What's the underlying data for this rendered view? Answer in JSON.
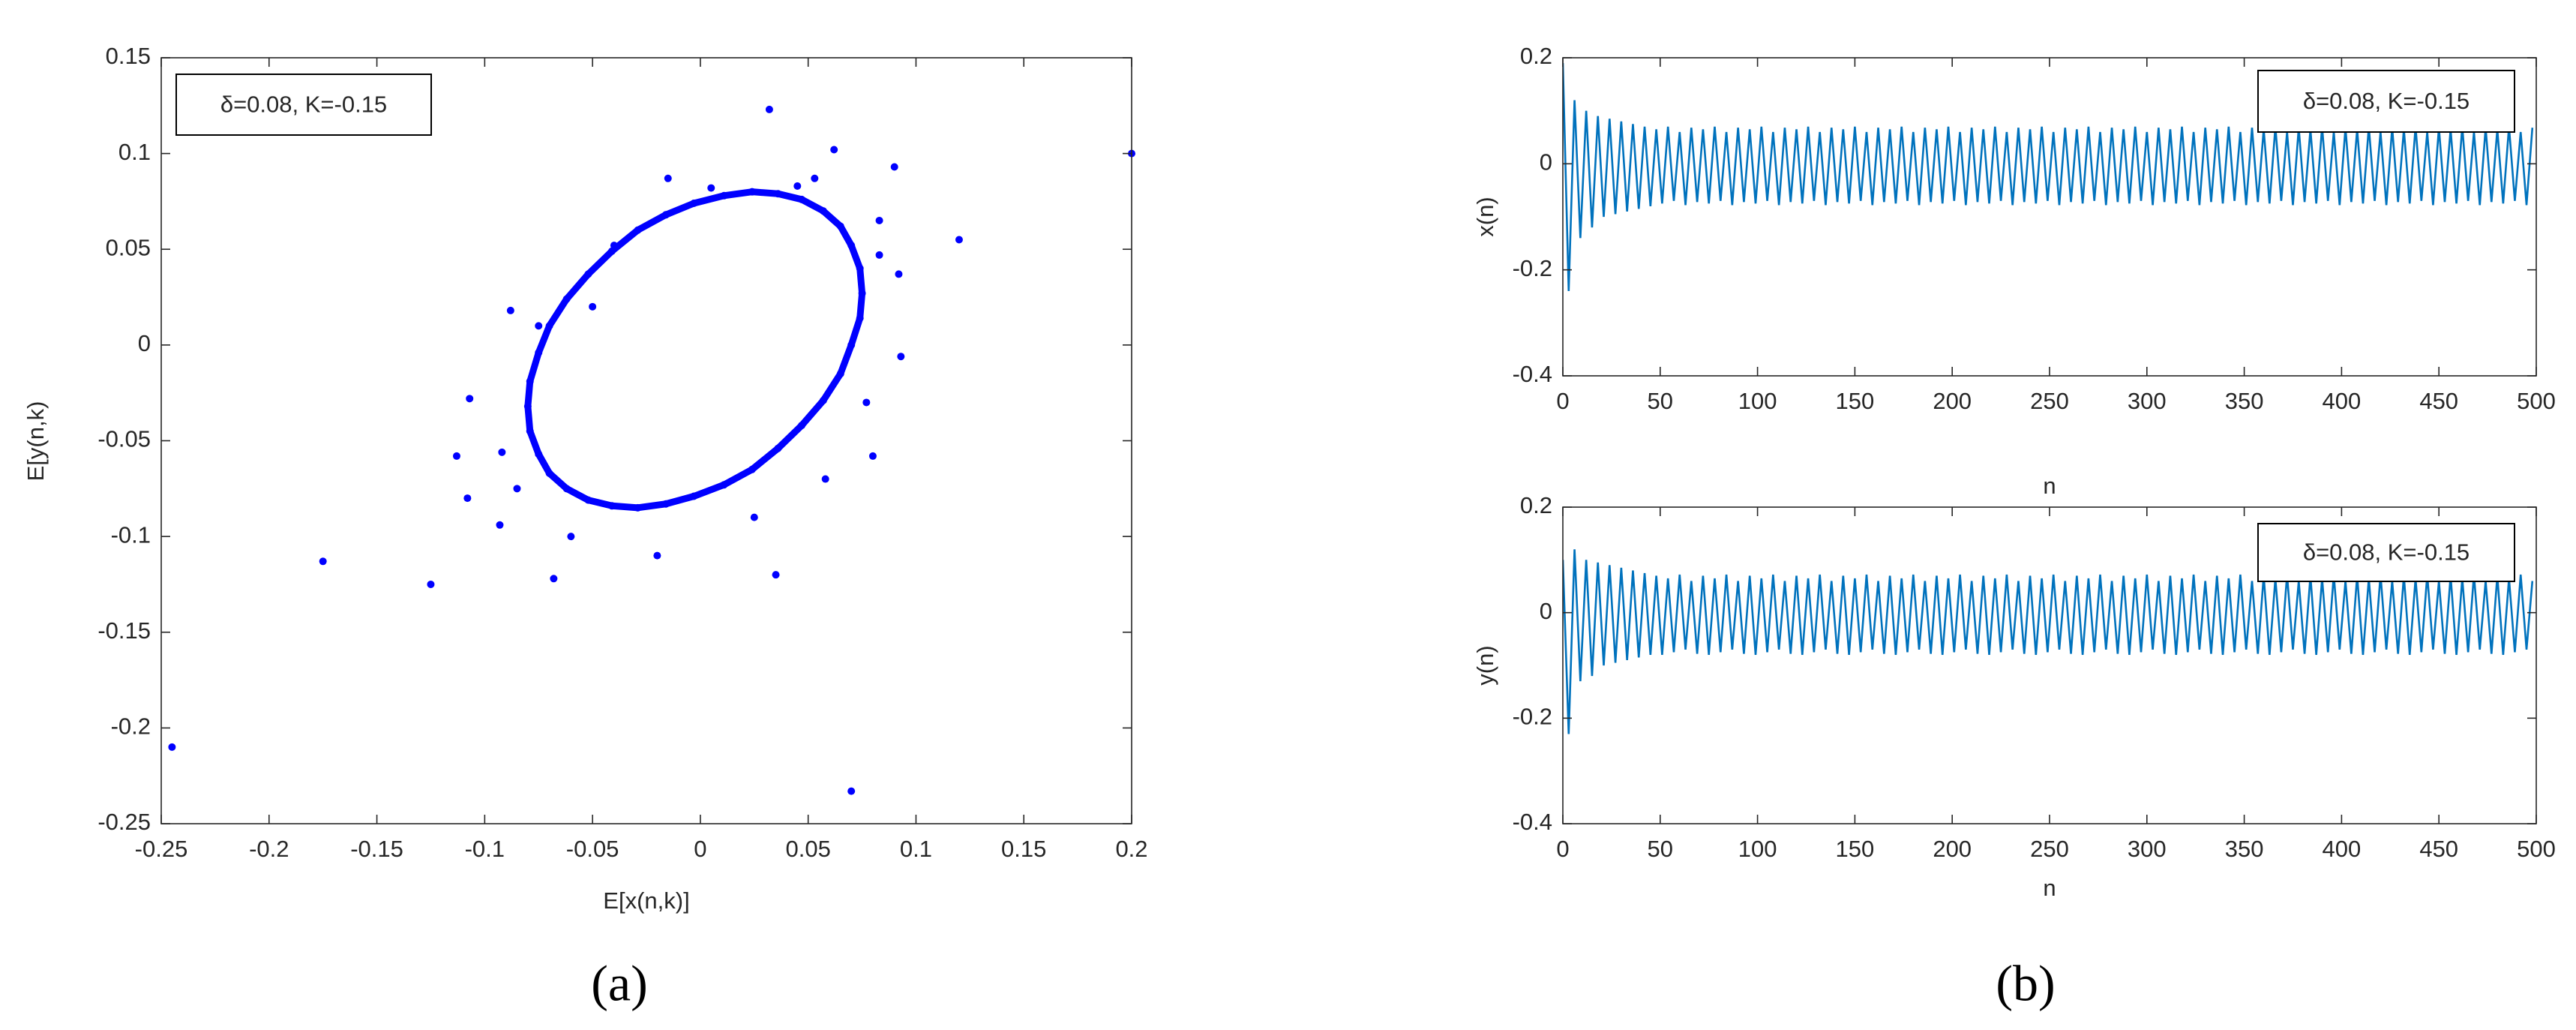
{
  "panel_labels": [
    "(a)",
    "(b)"
  ],
  "chart_data": [
    {
      "type": "scatter",
      "xlabel": "E[x(n,k)]",
      "ylabel": "E[y(n,k)",
      "annotation": "δ=0.08, K=-0.15",
      "xlim": [
        -0.25,
        0.2
      ],
      "ylim": [
        -0.25,
        0.15
      ],
      "xticks": [
        -0.25,
        -0.2,
        -0.15,
        -0.1,
        -0.05,
        0,
        0.05,
        0.1,
        0.15,
        0.2
      ],
      "yticks": [
        -0.25,
        -0.2,
        -0.15,
        -0.1,
        -0.05,
        0,
        0.05,
        0.1,
        0.15
      ],
      "series": [
        {
          "color": "#0000ff",
          "connected": true,
          "x": [
            0.075,
            0.074,
            0.07,
            0.065,
            0.057,
            0.047,
            0.036,
            0.024,
            0.011,
            -0.003,
            -0.016,
            -0.029,
            -0.041,
            -0.052,
            -0.062,
            -0.07,
            -0.075,
            -0.079,
            -0.08,
            -0.079,
            -0.075,
            -0.07,
            -0.062,
            -0.052,
            -0.041,
            -0.029,
            -0.016,
            -0.003,
            0.011,
            0.024,
            0.036,
            0.047,
            0.057,
            0.065,
            0.07,
            0.074
          ],
          "values": [
            0.027,
            0.04,
            0.052,
            0.062,
            0.07,
            0.076,
            0.079,
            0.08,
            0.078,
            0.074,
            0.068,
            0.06,
            0.049,
            0.037,
            0.024,
            0.01,
            -0.004,
            -0.019,
            -0.032,
            -0.045,
            -0.057,
            -0.067,
            -0.075,
            -0.081,
            -0.084,
            -0.085,
            -0.083,
            -0.079,
            -0.073,
            -0.065,
            -0.054,
            -0.042,
            -0.029,
            -0.015,
            0,
            0.014
          ]
        },
        {
          "color": "#0000ff",
          "connected": false,
          "x": [
            0.2,
            -0.245,
            -0.175,
            -0.125,
            0.07,
            0.12,
            0.032,
            0.09,
            0.062,
            0.035,
            -0.015,
            -0.02,
            -0.068,
            -0.088,
            -0.107,
            -0.113,
            -0.108,
            -0.093,
            -0.092,
            0.093,
            0.092,
            0.083,
            0.08,
            0.025,
            -0.04,
            -0.05,
            -0.06,
            0.045,
            0.053,
            0.077,
            0.005,
            -0.085,
            0.083,
            -0.075,
            0.058
          ],
          "values": [
            0.1,
            -0.21,
            -0.113,
            -0.125,
            -0.233,
            0.055,
            0.123,
            0.093,
            0.102,
            -0.12,
            0.087,
            -0.11,
            -0.122,
            0.018,
            -0.028,
            -0.058,
            -0.08,
            -0.094,
            -0.056,
            -0.006,
            0.037,
            0.047,
            -0.058,
            -0.09,
            0.052,
            0.02,
            -0.1,
            0.083,
            0.087,
            -0.03,
            0.082,
            -0.075,
            0.065,
            0.01,
            -0.07
          ]
        }
      ]
    },
    {
      "type": "line",
      "xlabel": "n",
      "ylabel": "x(n)",
      "annotation": "δ=0.08, K=-0.15",
      "xlim": [
        0,
        500
      ],
      "ylim": [
        -0.4,
        0.2
      ],
      "xticks": [
        0,
        50,
        100,
        150,
        200,
        250,
        300,
        350,
        400,
        450,
        500
      ],
      "yticks": [
        -0.4,
        -0.2,
        0,
        0.2
      ],
      "x": [
        0,
        3,
        6,
        9,
        12,
        15,
        18,
        21,
        24,
        27,
        30,
        33,
        36,
        39,
        42,
        45,
        48,
        51,
        54,
        57,
        60,
        63,
        66,
        69,
        72,
        75,
        78,
        81,
        84,
        87,
        90,
        93,
        96,
        99,
        102,
        105,
        108,
        111,
        114,
        117,
        120,
        123,
        126,
        129,
        132,
        135,
        138,
        141,
        144,
        147,
        150,
        153,
        156,
        159,
        162,
        165,
        168,
        171,
        174,
        177,
        180,
        183,
        186,
        189,
        192,
        195,
        198,
        201,
        204,
        207,
        210,
        213,
        216,
        219,
        222,
        225,
        228,
        231,
        234,
        237,
        240,
        243,
        246,
        249,
        252,
        255,
        258,
        261,
        264,
        267,
        270,
        273,
        276,
        279,
        282,
        285,
        288,
        291,
        294,
        297,
        300,
        303,
        306,
        309,
        312,
        315,
        318,
        321,
        324,
        327,
        330,
        333,
        336,
        339,
        342,
        345,
        348,
        351,
        354,
        357,
        360,
        363,
        366,
        369,
        372,
        375,
        378,
        381,
        384,
        387,
        390,
        393,
        396,
        399,
        402,
        405,
        408,
        411,
        414,
        417,
        420,
        423,
        426,
        429,
        432,
        435,
        438,
        441,
        444,
        447,
        450,
        453,
        456,
        459,
        462,
        465,
        468,
        471,
        474,
        477,
        480,
        483,
        486,
        489,
        492,
        495,
        498
      ],
      "series": [
        {
          "color": "#0072bd",
          "values": [
            0.19,
            -0.24,
            0.12,
            -0.14,
            0.1,
            -0.12,
            0.09,
            -0.1,
            0.085,
            -0.095,
            0.08,
            -0.09,
            0.075,
            -0.085,
            0.07,
            -0.08,
            0.065,
            -0.075,
            0.07,
            -0.07,
            0.06,
            -0.078,
            0.068,
            -0.072,
            0.065,
            -0.075,
            0.07,
            -0.07,
            0.06,
            -0.078,
            0.068,
            -0.072,
            0.065,
            -0.075,
            0.07,
            -0.07,
            0.06,
            -0.078,
            0.068,
            -0.072,
            0.065,
            -0.075,
            0.07,
            -0.07,
            0.06,
            -0.078,
            0.068,
            -0.072,
            0.065,
            -0.075,
            0.07,
            -0.07,
            0.06,
            -0.078,
            0.068,
            -0.072,
            0.065,
            -0.075,
            0.07,
            -0.07,
            0.06,
            -0.078,
            0.068,
            -0.072,
            0.065,
            -0.075,
            0.07,
            -0.07,
            0.06,
            -0.078,
            0.068,
            -0.072,
            0.065,
            -0.075,
            0.07,
            -0.07,
            0.06,
            -0.078,
            0.068,
            -0.072,
            0.065,
            -0.075,
            0.07,
            -0.07,
            0.06,
            -0.078,
            0.068,
            -0.072,
            0.065,
            -0.075,
            0.07,
            -0.07,
            0.06,
            -0.078,
            0.068,
            -0.072,
            0.065,
            -0.075,
            0.07,
            -0.07,
            0.06,
            -0.078,
            0.068,
            -0.072,
            0.065,
            -0.075,
            0.07,
            -0.07,
            0.06,
            -0.078,
            0.068,
            -0.072,
            0.065,
            -0.075,
            0.07,
            -0.07,
            0.06,
            -0.078,
            0.068,
            -0.072,
            0.065,
            -0.075,
            0.07,
            -0.07,
            0.06,
            -0.078,
            0.068,
            -0.072,
            0.065,
            -0.075,
            0.07,
            -0.07,
            0.06,
            -0.078,
            0.068,
            -0.072,
            0.065,
            -0.075,
            0.07,
            -0.07,
            0.06,
            -0.078,
            0.068,
            -0.072,
            0.065,
            -0.075,
            0.07,
            -0.07,
            0.06,
            -0.078,
            0.068,
            -0.072,
            0.065,
            -0.075,
            0.07,
            -0.07,
            0.06,
            -0.078,
            0.068,
            -0.072,
            0.065,
            -0.075,
            0.07,
            -0.07,
            0.06,
            -0.078,
            0.068
          ]
        }
      ]
    },
    {
      "type": "line",
      "xlabel": "n",
      "ylabel": "y(n)",
      "annotation": "δ=0.08, K=-0.15",
      "xlim": [
        0,
        500
      ],
      "ylim": [
        -0.4,
        0.2
      ],
      "xticks": [
        0,
        50,
        100,
        150,
        200,
        250,
        300,
        350,
        400,
        450,
        500
      ],
      "yticks": [
        -0.4,
        -0.2,
        0,
        0.2
      ],
      "x": [
        0,
        3,
        6,
        9,
        12,
        15,
        18,
        21,
        24,
        27,
        30,
        33,
        36,
        39,
        42,
        45,
        48,
        51,
        54,
        57,
        60,
        63,
        66,
        69,
        72,
        75,
        78,
        81,
        84,
        87,
        90,
        93,
        96,
        99,
        102,
        105,
        108,
        111,
        114,
        117,
        120,
        123,
        126,
        129,
        132,
        135,
        138,
        141,
        144,
        147,
        150,
        153,
        156,
        159,
        162,
        165,
        168,
        171,
        174,
        177,
        180,
        183,
        186,
        189,
        192,
        195,
        198,
        201,
        204,
        207,
        210,
        213,
        216,
        219,
        222,
        225,
        228,
        231,
        234,
        237,
        240,
        243,
        246,
        249,
        252,
        255,
        258,
        261,
        264,
        267,
        270,
        273,
        276,
        279,
        282,
        285,
        288,
        291,
        294,
        297,
        300,
        303,
        306,
        309,
        312,
        315,
        318,
        321,
        324,
        327,
        330,
        333,
        336,
        339,
        342,
        345,
        348,
        351,
        354,
        357,
        360,
        363,
        366,
        369,
        372,
        375,
        378,
        381,
        384,
        387,
        390,
        393,
        396,
        399,
        402,
        405,
        408,
        411,
        414,
        417,
        420,
        423,
        426,
        429,
        432,
        435,
        438,
        441,
        444,
        447,
        450,
        453,
        456,
        459,
        462,
        465,
        468,
        471,
        474,
        477,
        480,
        483,
        486,
        489,
        492,
        495,
        498
      ],
      "series": [
        {
          "color": "#0072bd",
          "values": [
            0.1,
            -0.23,
            0.12,
            -0.13,
            0.1,
            -0.12,
            0.095,
            -0.1,
            0.09,
            -0.095,
            0.085,
            -0.09,
            0.08,
            -0.085,
            0.075,
            -0.08,
            0.07,
            -0.08,
            0.065,
            -0.075,
            0.072,
            -0.07,
            0.06,
            -0.078,
            0.07,
            -0.08,
            0.065,
            -0.075,
            0.072,
            -0.07,
            0.06,
            -0.078,
            0.07,
            -0.08,
            0.065,
            -0.075,
            0.072,
            -0.07,
            0.06,
            -0.078,
            0.07,
            -0.08,
            0.065,
            -0.075,
            0.072,
            -0.07,
            0.06,
            -0.078,
            0.07,
            -0.08,
            0.065,
            -0.075,
            0.072,
            -0.07,
            0.06,
            -0.078,
            0.07,
            -0.08,
            0.065,
            -0.075,
            0.072,
            -0.07,
            0.06,
            -0.078,
            0.07,
            -0.08,
            0.065,
            -0.075,
            0.072,
            -0.07,
            0.06,
            -0.078,
            0.07,
            -0.08,
            0.065,
            -0.075,
            0.072,
            -0.07,
            0.06,
            -0.078,
            0.07,
            -0.08,
            0.065,
            -0.075,
            0.072,
            -0.07,
            0.06,
            -0.078,
            0.07,
            -0.08,
            0.065,
            -0.075,
            0.072,
            -0.07,
            0.06,
            -0.078,
            0.07,
            -0.08,
            0.065,
            -0.075,
            0.072,
            -0.07,
            0.06,
            -0.078,
            0.07,
            -0.08,
            0.065,
            -0.075,
            0.072,
            -0.07,
            0.06,
            -0.078,
            0.07,
            -0.08,
            0.065,
            -0.075,
            0.072,
            -0.07,
            0.06,
            -0.078,
            0.07,
            -0.08,
            0.065,
            -0.075,
            0.072,
            -0.07,
            0.06,
            -0.078,
            0.07,
            -0.08,
            0.065,
            -0.075,
            0.072,
            -0.07,
            0.06,
            -0.078,
            0.07,
            -0.08,
            0.065,
            -0.075,
            0.072,
            -0.07,
            0.06,
            -0.078,
            0.07,
            -0.08,
            0.065,
            -0.075,
            0.072,
            -0.07,
            0.06,
            -0.078,
            0.07,
            -0.08,
            0.065,
            -0.075,
            0.072,
            -0.07,
            0.06,
            -0.078,
            0.07,
            -0.08,
            0.065,
            -0.075,
            0.072,
            -0.07,
            0.06
          ]
        }
      ]
    }
  ]
}
